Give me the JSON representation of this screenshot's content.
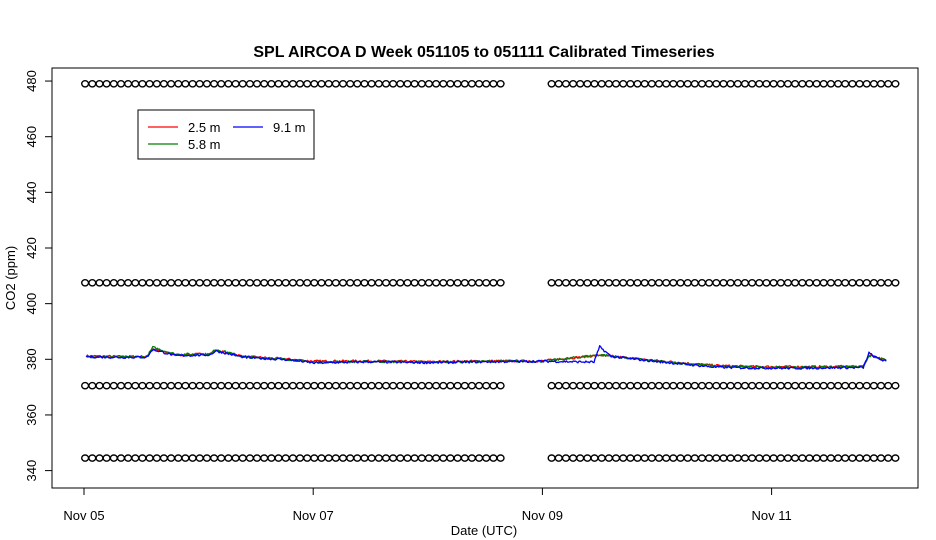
{
  "chart_data": {
    "type": "line",
    "title": "SPL AIRCOA D  Week 051105 to 051111  Calibrated Timeseries",
    "xlabel": "Date (UTC)",
    "ylabel": "CO2 (ppm)",
    "x_ticks": [
      {
        "day": 0,
        "label": "Nov 05"
      },
      {
        "day": 2,
        "label": "Nov 07"
      },
      {
        "day": 4,
        "label": "Nov 09"
      },
      {
        "day": 6,
        "label": "Nov 11"
      }
    ],
    "xlim": [
      0,
      7.22
    ],
    "ylim": [
      335,
      483
    ],
    "y_ticks": [
      340,
      360,
      380,
      400,
      420,
      440,
      460,
      480
    ],
    "grid": false,
    "legend": {
      "placement": "top-left",
      "entries": [
        {
          "label": "2.5 m",
          "color": "#ff0000"
        },
        {
          "label": "5.8 m",
          "color": "#008000"
        },
        {
          "label": "9.1 m",
          "color": "#0000ff"
        }
      ]
    },
    "series": [
      {
        "name": "2.5 m",
        "color": "#ff0000",
        "x": [
          0.02,
          0.3,
          0.55,
          0.6,
          0.8,
          1.1,
          1.15,
          1.4,
          1.8,
          2.0,
          2.5,
          3.0,
          3.5,
          4.0,
          4.5,
          5.0,
          5.5,
          5.8,
          6.2,
          6.6,
          6.8,
          6.85,
          6.9,
          7.0
        ],
        "values": [
          381.2,
          381.0,
          381.0,
          383.8,
          381.5,
          382.0,
          383.2,
          381.0,
          380.0,
          379.3,
          379.4,
          379.1,
          379.4,
          379.4,
          381.5,
          379.5,
          377.8,
          377.4,
          377.3,
          377.4,
          377.4,
          381.6,
          381.0,
          379.6
        ]
      },
      {
        "name": "5.8 m",
        "color": "#008000",
        "x": [
          0.02,
          0.3,
          0.55,
          0.6,
          0.8,
          1.1,
          1.15,
          1.4,
          1.8,
          2.0,
          2.5,
          3.0,
          3.5,
          4.0,
          4.5,
          5.0,
          5.5,
          5.8,
          6.2,
          6.6,
          6.8,
          6.85,
          6.9,
          7.0
        ],
        "values": [
          381.0,
          380.8,
          380.9,
          384.3,
          381.8,
          381.8,
          383.6,
          380.8,
          379.9,
          379.0,
          379.2,
          379.0,
          379.2,
          379.3,
          381.6,
          379.3,
          377.6,
          377.2,
          377.1,
          377.3,
          377.3,
          381.4,
          380.8,
          379.5
        ]
      },
      {
        "name": "9.1 m",
        "color": "#0000ff",
        "x": [
          0.02,
          0.3,
          0.55,
          0.6,
          0.8,
          1.1,
          1.15,
          1.4,
          1.8,
          2.0,
          2.5,
          3.0,
          3.5,
          4.0,
          4.45,
          4.5,
          4.6,
          5.0,
          5.5,
          5.8,
          6.2,
          6.6,
          6.8,
          6.85,
          6.9,
          7.0
        ],
        "values": [
          380.9,
          380.7,
          380.8,
          383.5,
          381.3,
          381.6,
          383.0,
          380.7,
          379.8,
          378.7,
          379.1,
          378.8,
          379.1,
          379.3,
          379.0,
          384.5,
          381.0,
          379.2,
          377.2,
          376.9,
          376.8,
          377.0,
          377.0,
          382.3,
          380.8,
          379.2
        ]
      }
    ],
    "markers": {
      "symbol": "o",
      "color": "#000000",
      "segments": [
        {
          "x_start": 0.01,
          "x_end": 3.68
        },
        {
          "x_start": 4.08,
          "x_end": 7.1
        }
      ],
      "levels": [
        479,
        407.5,
        370.5,
        344.5
      ]
    }
  }
}
